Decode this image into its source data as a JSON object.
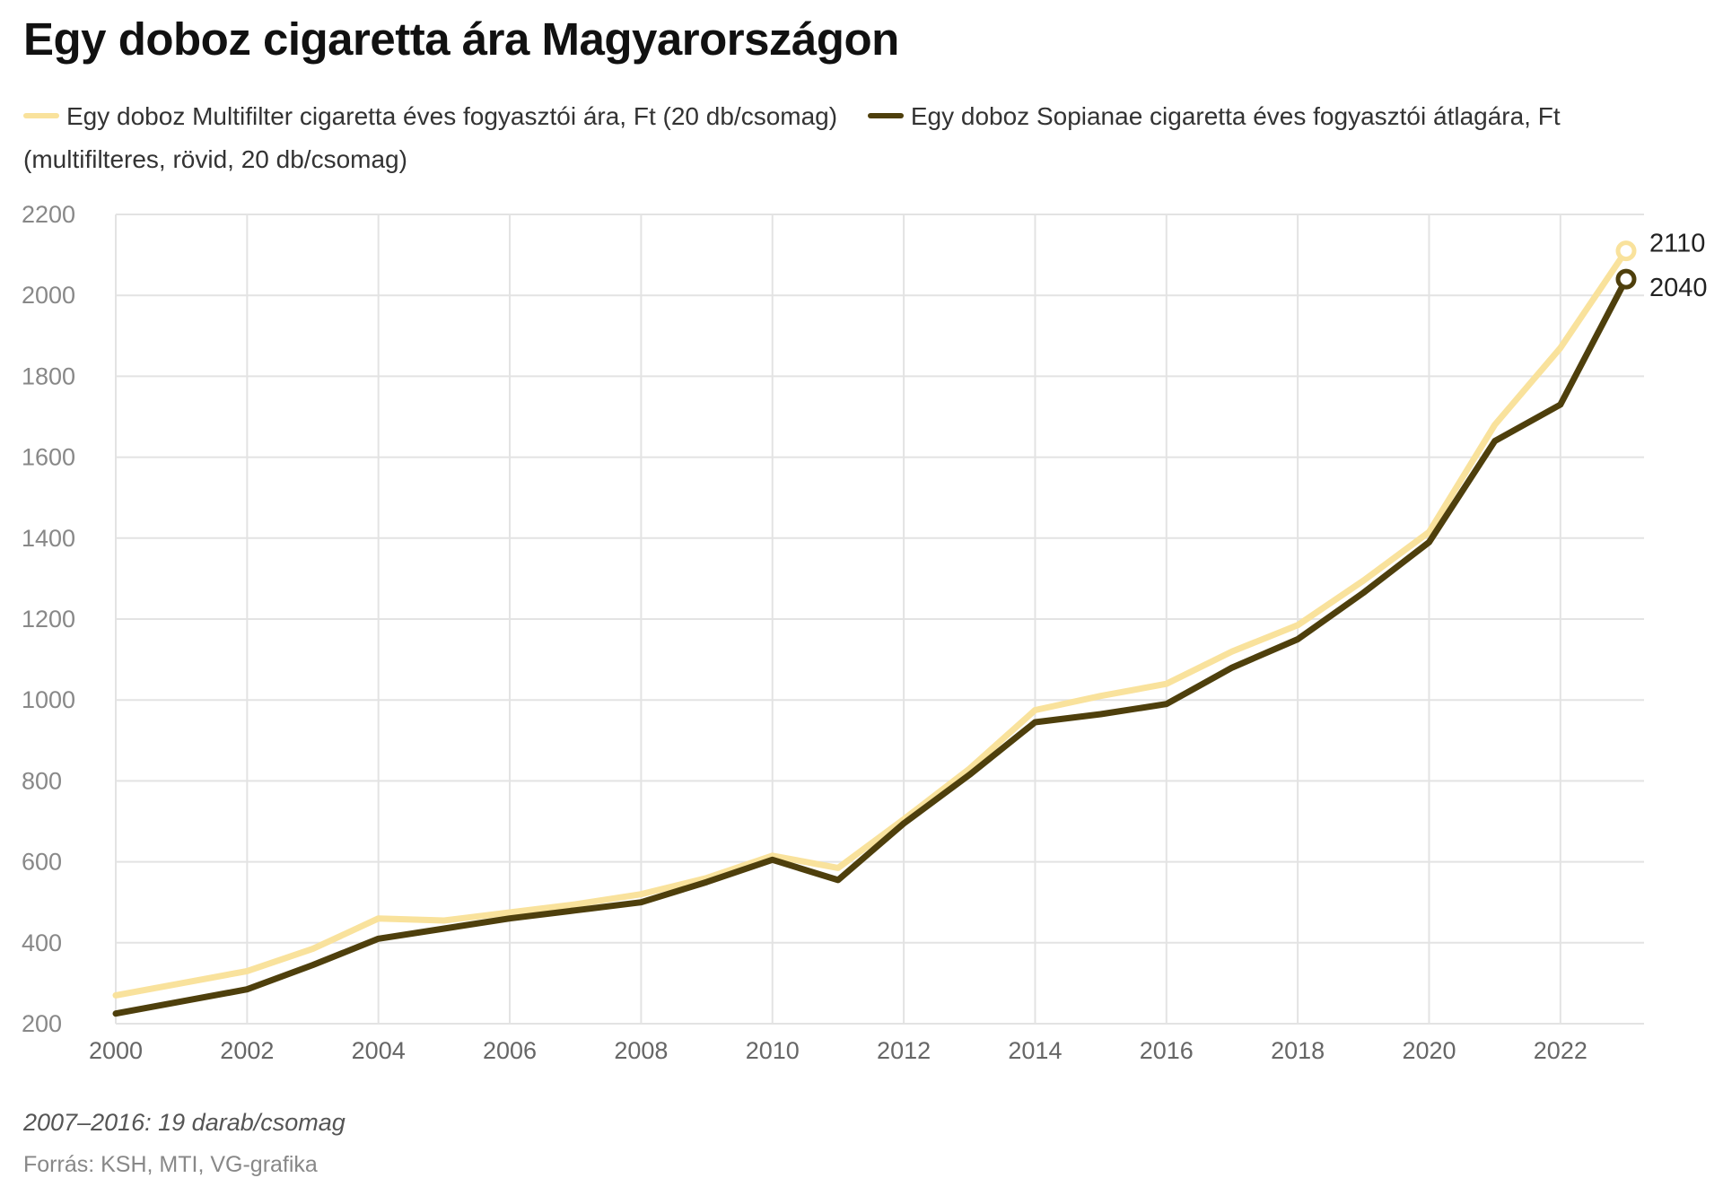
{
  "title": "Egy doboz cigaretta ára Magyarországon",
  "note": "2007–2016: 19 darab/csomag",
  "source": "Forrás: KSH, MTI, VG-grafika",
  "chart_data": {
    "type": "line",
    "title": "Egy doboz cigaretta ára Magyarországon",
    "xlabel": "",
    "ylabel": "",
    "xlim": [
      2000,
      2023
    ],
    "ylim": [
      200,
      2200
    ],
    "x_ticks": [
      2000,
      2002,
      2004,
      2006,
      2008,
      2010,
      2012,
      2014,
      2016,
      2018,
      2020,
      2022
    ],
    "y_ticks": [
      200,
      400,
      600,
      800,
      1000,
      1200,
      1400,
      1600,
      1800,
      2000,
      2200
    ],
    "grid": true,
    "legend_position": "top",
    "x": [
      2000,
      2001,
      2002,
      2003,
      2004,
      2005,
      2006,
      2007,
      2008,
      2009,
      2010,
      2011,
      2012,
      2013,
      2014,
      2015,
      2016,
      2017,
      2018,
      2019,
      2020,
      2021,
      2022,
      2023
    ],
    "series": [
      {
        "name": "Egy doboz Multifilter cigaretta éves fogyasztói ára, Ft (20 db/csomag)",
        "color": "#f9e29c",
        "values": [
          270,
          300,
          330,
          385,
          460,
          455,
          475,
          495,
          520,
          560,
          615,
          585,
          705,
          830,
          975,
          1010,
          1040,
          1120,
          1185,
          1295,
          1415,
          1680,
          1870,
          2110
        ],
        "end_label": "2110"
      },
      {
        "name": "Egy doboz Sopianae cigaretta éves fogyasztói átlagára, Ft (multifilteres, rövid, 20 db/csomag)",
        "color": "#4e3f0c",
        "values": [
          225,
          255,
          285,
          345,
          410,
          435,
          460,
          480,
          500,
          550,
          605,
          555,
          695,
          815,
          945,
          965,
          990,
          1080,
          1150,
          1265,
          1390,
          1640,
          1730,
          2040
        ],
        "end_label": "2040"
      }
    ]
  }
}
